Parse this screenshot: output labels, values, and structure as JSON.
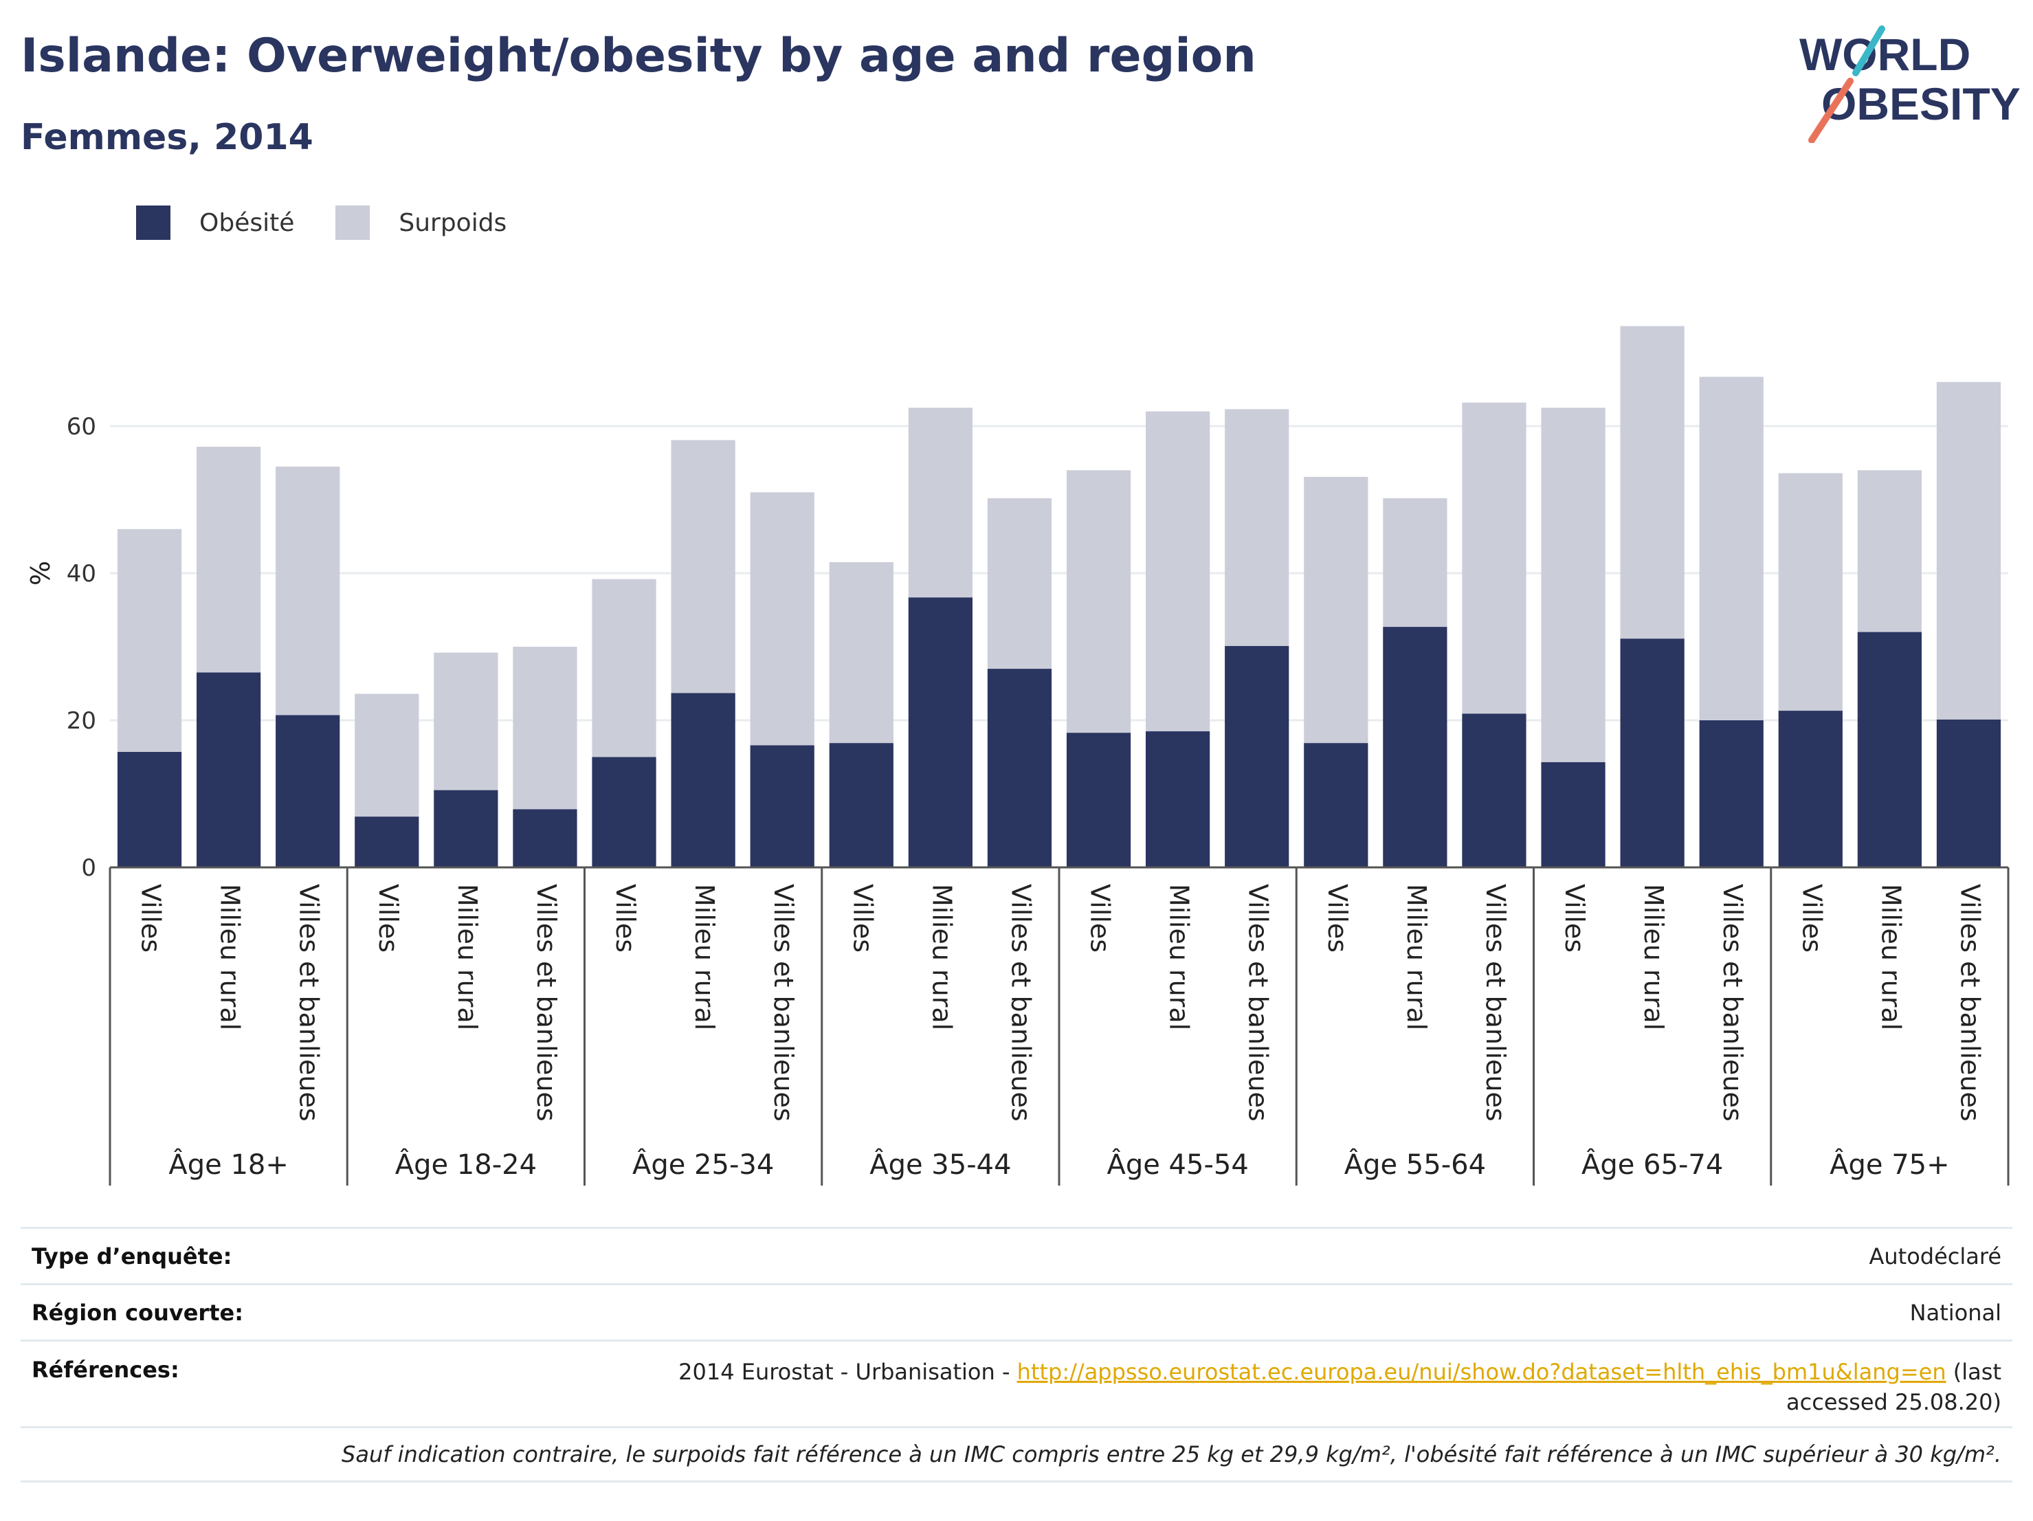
{
  "title": "Islande: Overweight/obesity by age and region",
  "subtitle": "Femmes, 2014",
  "logo": {
    "line1": "WORLD",
    "line2": "OBESITY",
    "colors": [
      "#2a3560",
      "#e8735a",
      "#3ab7c8"
    ]
  },
  "legend": [
    {
      "label": "Obésité",
      "color": "#2a3560"
    },
    {
      "label": "Surpoids",
      "color": "#cbcdd9"
    }
  ],
  "chart_data": {
    "type": "bar",
    "stacked": true,
    "ylabel": "%",
    "ylim": [
      0,
      80
    ],
    "yticks": [
      0,
      20,
      40,
      60
    ],
    "grid": true,
    "legend_position": "top-left",
    "groups": [
      "Âge 18+",
      "Âge 18-24",
      "Âge 25-34",
      "Âge 35-44",
      "Âge 45-54",
      "Âge 55-64",
      "Âge 65-74",
      "Âge 75+"
    ],
    "subcategories": [
      "Villes",
      "Milieu rural",
      "Villes et banlieues"
    ],
    "series": [
      {
        "name": "Obésité",
        "color": "#2a3560",
        "values": [
          15.7,
          26.5,
          20.7,
          6.9,
          10.5,
          7.9,
          15.0,
          23.7,
          16.6,
          16.9,
          36.7,
          27.0,
          18.3,
          18.5,
          30.1,
          16.9,
          32.7,
          20.9,
          14.3,
          31.1,
          20.0,
          21.3,
          32.0,
          20.1
        ]
      },
      {
        "name": "Surpoids",
        "color": "#cbcdd9",
        "values": [
          30.3,
          30.7,
          33.8,
          16.7,
          18.7,
          22.1,
          24.2,
          34.4,
          34.4,
          24.6,
          25.8,
          23.2,
          35.7,
          43.5,
          32.2,
          36.2,
          17.5,
          42.3,
          48.2,
          42.5,
          46.7,
          32.3,
          22.0,
          45.9
        ]
      }
    ]
  },
  "info": {
    "survey_type_label": "Type d’enquête:",
    "survey_type_value": "Autodéclaré",
    "region_label": "Région couverte:",
    "region_value": "National",
    "references_label": "Références:",
    "references_prefix": "2014 Eurostat - Urbanisation - ",
    "references_link": "http://appsso.eurostat.ec.europa.eu/nui/show.do?dataset=hlth_ehis_bm1u&lang=en",
    "references_suffix": " (last accessed 25.08.20)",
    "note": "Sauf indication contraire, le surpoids fait référence à un IMC compris entre 25 kg et 29,9 kg/m², l'obésité fait référence à un IMC supérieur à 30 kg/m²."
  }
}
